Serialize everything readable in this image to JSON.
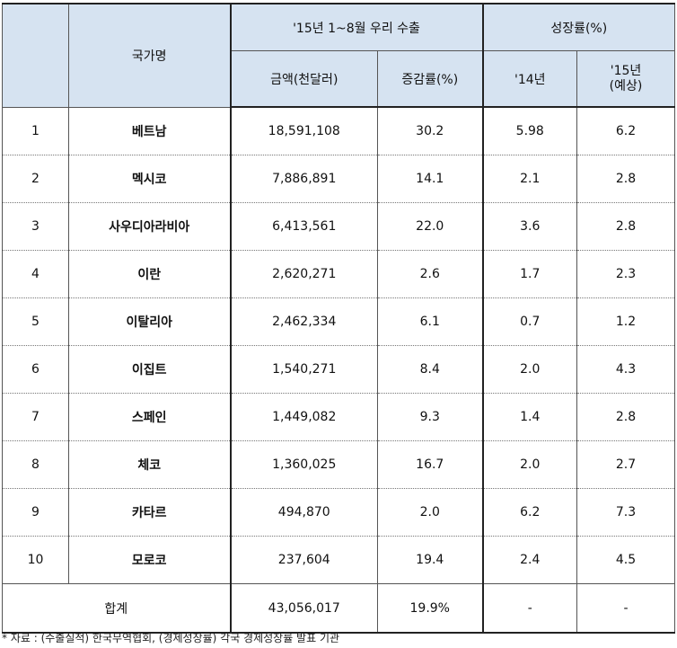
{
  "header": {
    "country": "국가명",
    "export_group": "'15년 1~8월 우리 수출",
    "amount": "금액(천달러)",
    "change": "증감률(%)",
    "growth_group": "성장률(%)",
    "y14": "'14년",
    "y15_line1": "'15년",
    "y15_line2": "(예상)"
  },
  "rows": [
    {
      "no": "1",
      "name": "베트남",
      "amount": "18,591,108",
      "change": "30.2",
      "g14": "5.98",
      "g15": "6.2"
    },
    {
      "no": "2",
      "name": "멕시코",
      "amount": "7,886,891",
      "change": "14.1",
      "g14": "2.1",
      "g15": "2.8"
    },
    {
      "no": "3",
      "name": "사우디아라비아",
      "amount": "6,413,561",
      "change": "22.0",
      "g14": "3.6",
      "g15": "2.8"
    },
    {
      "no": "4",
      "name": "이란",
      "amount": "2,620,271",
      "change": "2.6",
      "g14": "1.7",
      "g15": "2.3"
    },
    {
      "no": "5",
      "name": "이탈리아",
      "amount": "2,462,334",
      "change": "6.1",
      "g14": "0.7",
      "g15": "1.2"
    },
    {
      "no": "6",
      "name": "이집트",
      "amount": "1,540,271",
      "change": "8.4",
      "g14": "2.0",
      "g15": "4.3"
    },
    {
      "no": "7",
      "name": "스페인",
      "amount": "1,449,082",
      "change": "9.3",
      "g14": "1.4",
      "g15": "2.8"
    },
    {
      "no": "8",
      "name": "체코",
      "amount": "1,360,025",
      "change": "16.7",
      "g14": "2.0",
      "g15": "2.7"
    },
    {
      "no": "9",
      "name": "카타르",
      "amount": "494,870",
      "change": "2.0",
      "g14": "6.2",
      "g15": "7.3"
    },
    {
      "no": "10",
      "name": "모로코",
      "amount": "237,604",
      "change": "19.4",
      "g14": "2.4",
      "g15": "4.5"
    }
  ],
  "total": {
    "label": "합계",
    "amount": "43,056,017",
    "change": "19.9%",
    "g14": "-",
    "g15": "-"
  },
  "footnote": "* 자료 : (수출실적) 한국무역협회, (경제성장률) 각국 경제성장률 발표 기관"
}
